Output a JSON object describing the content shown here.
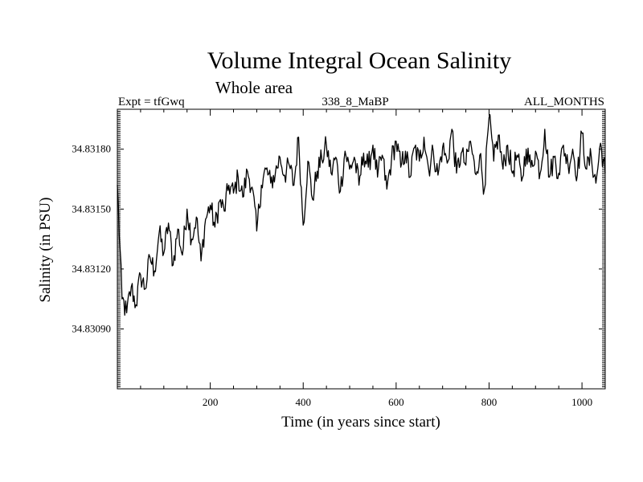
{
  "chart_data": {
    "type": "line",
    "title": "Volume Integral Ocean Salinity",
    "subtitle": "Whole area",
    "expt_label": "Expt = tfGwq",
    "run_label": "338_8_MaBP",
    "period_label": "ALL_MONTHS",
    "xlabel": "Time (in years since start)",
    "ylabel": "Salinity (in PSU)",
    "xlim": [
      0,
      1050
    ],
    "ylim": [
      34.8306,
      34.832
    ],
    "xticks": [
      200,
      400,
      600,
      800,
      1000
    ],
    "xtick_labels": [
      "200",
      "400",
      "600",
      "800",
      "1000"
    ],
    "yticks": [
      34.8309,
      34.8312,
      34.8315,
      34.8318
    ],
    "ytick_labels": [
      "34.83090",
      "34.83120",
      "34.83150",
      "34.83180"
    ],
    "series": [
      {
        "name": "salinity",
        "x": [
          0,
          10,
          20,
          30,
          40,
          50,
          60,
          70,
          80,
          90,
          100,
          110,
          120,
          130,
          140,
          150,
          160,
          170,
          180,
          190,
          200,
          210,
          220,
          230,
          240,
          250,
          260,
          270,
          280,
          290,
          300,
          310,
          320,
          330,
          340,
          350,
          360,
          370,
          380,
          390,
          400,
          410,
          420,
          430,
          440,
          450,
          460,
          470,
          480,
          490,
          500,
          510,
          520,
          530,
          540,
          550,
          560,
          570,
          580,
          590,
          600,
          610,
          620,
          630,
          640,
          650,
          660,
          670,
          680,
          690,
          700,
          710,
          720,
          730,
          740,
          750,
          760,
          770,
          780,
          790,
          800,
          810,
          820,
          830,
          840,
          850,
          860,
          870,
          880,
          890,
          900,
          910,
          920,
          930,
          940,
          950,
          960,
          970,
          980,
          990,
          1000,
          1010,
          1020,
          1030,
          1040,
          1050
        ],
        "values": [
          34.83162,
          34.83105,
          34.83098,
          34.83111,
          34.83102,
          34.83117,
          34.8311,
          34.83126,
          34.83119,
          34.83138,
          34.83128,
          34.83143,
          34.83122,
          34.8314,
          34.83127,
          34.8315,
          34.83135,
          34.83146,
          34.83124,
          34.83145,
          34.83152,
          34.83141,
          34.83154,
          34.83149,
          34.83162,
          34.83158,
          34.83166,
          34.83156,
          34.83169,
          34.83161,
          34.83139,
          34.83162,
          34.8317,
          34.83163,
          34.83168,
          34.83176,
          34.83167,
          34.83172,
          34.83162,
          34.83186,
          34.83142,
          34.83174,
          34.83155,
          34.83169,
          34.83175,
          34.83182,
          34.83168,
          34.83176,
          34.83159,
          34.83179,
          34.8317,
          34.83176,
          34.83162,
          34.83178,
          34.83171,
          34.83182,
          34.83166,
          34.83177,
          34.8316,
          34.83175,
          34.83184,
          34.83171,
          34.83179,
          34.83166,
          34.83181,
          34.83174,
          34.83186,
          34.8317,
          34.83179,
          34.83167,
          34.83181,
          34.83173,
          34.8319,
          34.83168,
          34.83178,
          34.83172,
          34.83184,
          34.83168,
          34.83177,
          34.8316,
          34.83196,
          34.83174,
          34.83187,
          34.8317,
          34.83182,
          34.83168,
          34.83177,
          34.83164,
          34.8318,
          34.83171,
          34.83179,
          34.83168,
          34.8319,
          34.83166,
          34.83176,
          34.83168,
          34.83182,
          34.83172,
          34.8318,
          34.83167,
          34.83188,
          34.8317,
          34.83176,
          34.83163,
          34.83183,
          34.83168
        ]
      }
    ]
  }
}
